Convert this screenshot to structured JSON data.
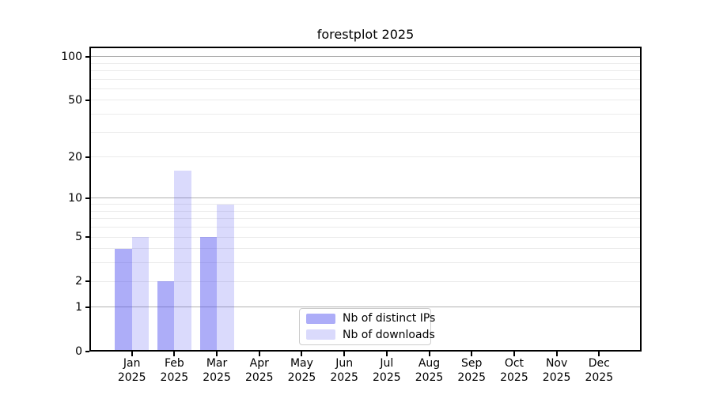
{
  "chart_data": {
    "type": "bar",
    "title": "forestplot 2025",
    "xlabel": "",
    "ylabel": "",
    "categories": [
      "Jan\n2025",
      "Feb\n2025",
      "Mar\n2025",
      "Apr\n2025",
      "May\n2025",
      "Jun\n2025",
      "Jul\n2025",
      "Aug\n2025",
      "Sep\n2025",
      "Oct\n2025",
      "Nov\n2025",
      "Dec\n2025"
    ],
    "series": [
      {
        "name": "Nb of distinct IPs",
        "color": "#5050f0",
        "alpha": 0.47,
        "values": [
          4,
          2,
          5,
          0,
          0,
          0,
          0,
          0,
          0,
          0,
          0,
          0
        ]
      },
      {
        "name": "Nb of downloads",
        "color": "#5050f0",
        "alpha": 0.21,
        "values": [
          5,
          16,
          9,
          0,
          0,
          0,
          0,
          0,
          0,
          0,
          0,
          0
        ]
      }
    ],
    "yticks": [
      0,
      1,
      2,
      5,
      10,
      20,
      50,
      100
    ],
    "ylim": [
      0,
      117
    ],
    "yscale": "log1p",
    "grid": {
      "major": [
        1,
        10,
        100
      ],
      "minor": [
        2,
        3,
        4,
        5,
        6,
        7,
        8,
        9,
        20,
        30,
        40,
        50,
        60,
        70,
        80,
        90
      ]
    },
    "legend_position": "lower-center-inside",
    "colors": {
      "grid_major": "#b0b0b0",
      "grid_minor": "#ebebeb",
      "spine": "#000000",
      "legend_border": "#cccccc",
      "text": "#000000"
    }
  }
}
